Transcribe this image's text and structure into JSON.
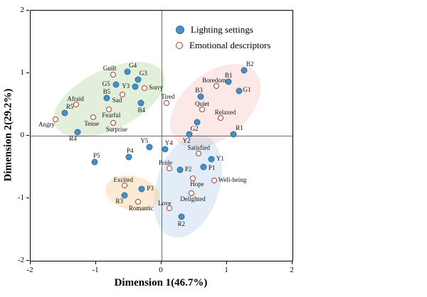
{
  "chart_data": {
    "type": "scatter",
    "title": "",
    "xlabel": "Dimension 1(46.7%)",
    "ylabel": "Dimension 2(29.2%)",
    "xlim": [
      -2,
      2
    ],
    "ylim": [
      -2,
      2
    ],
    "xticks": [
      -2,
      -1,
      0,
      1,
      2
    ],
    "yticks": [
      2,
      1,
      0,
      -1,
      -2
    ],
    "grid": false,
    "legend_position": "upper-center-inside",
    "series": [
      {
        "name": "Lighting settings",
        "marker": "filled-circle",
        "color": "#4a8fc2",
        "points": [
          {
            "label": "G4",
            "x": -0.52,
            "y": 1.02,
            "dx": 2,
            "dy": -13
          },
          {
            "label": "G3",
            "x": -0.36,
            "y": 0.9,
            "dx": 2,
            "dy": -13
          },
          {
            "label": "G5",
            "x": -0.7,
            "y": 0.82,
            "dx": -19,
            "dy": -5
          },
          {
            "label": "Y3",
            "x": -0.4,
            "y": 0.78,
            "dx": -19,
            "dy": -5
          },
          {
            "label": "B5",
            "x": -0.84,
            "y": 0.6,
            "dx": -5,
            "dy": -13
          },
          {
            "label": "B4",
            "x": -0.32,
            "y": 0.52,
            "dx": -4,
            "dy": 6
          },
          {
            "label": "R5",
            "x": -1.48,
            "y": 0.36,
            "dx": 2,
            "dy": -13
          },
          {
            "label": "R4",
            "x": -1.28,
            "y": 0.06,
            "dx": -12,
            "dy": 5
          },
          {
            "label": "B2",
            "x": 1.26,
            "y": 1.04,
            "dx": 3,
            "dy": -13
          },
          {
            "label": "B1",
            "x": 1.02,
            "y": 0.86,
            "dx": -5,
            "dy": -13
          },
          {
            "label": "G1",
            "x": 1.18,
            "y": 0.72,
            "dx": 6,
            "dy": -6
          },
          {
            "label": "B3",
            "x": 0.6,
            "y": 0.62,
            "dx": -8,
            "dy": -13
          },
          {
            "label": "G2",
            "x": 0.54,
            "y": 0.22,
            "dx": -9,
            "dy": 5
          },
          {
            "label": "Y2",
            "x": 0.42,
            "y": 0.02,
            "dx": -9,
            "dy": 5
          },
          {
            "label": "R1",
            "x": 1.1,
            "y": 0.02,
            "dx": 3,
            "dy": -13
          },
          {
            "label": "Y5",
            "x": -0.18,
            "y": -0.18,
            "dx": -13,
            "dy": -13
          },
          {
            "label": "Y4",
            "x": 0.05,
            "y": -0.22,
            "dx": 0,
            "dy": -13
          },
          {
            "label": "P4",
            "x": -0.5,
            "y": -0.34,
            "dx": -3,
            "dy": -13
          },
          {
            "label": "P5",
            "x": -1.02,
            "y": -0.42,
            "dx": -2,
            "dy": -13
          },
          {
            "label": "Y1",
            "x": 0.76,
            "y": -0.38,
            "dx": 7,
            "dy": -5
          },
          {
            "label": "P1",
            "x": 0.64,
            "y": -0.5,
            "dx": 7,
            "dy": -3
          },
          {
            "label": "P2",
            "x": 0.28,
            "y": -0.55,
            "dx": 7,
            "dy": -5
          },
          {
            "label": "P3",
            "x": -0.3,
            "y": -0.85,
            "dx": 7,
            "dy": -5
          },
          {
            "label": "R3",
            "x": -0.56,
            "y": -0.96,
            "dx": -13,
            "dy": 4
          },
          {
            "label": "R2",
            "x": 0.3,
            "y": -1.3,
            "dx": -5,
            "dy": 6
          }
        ]
      },
      {
        "name": "Emotional descriptors",
        "marker": "open-circle",
        "color": "#a8432c",
        "points": [
          {
            "label": "Guilt",
            "x": -0.74,
            "y": 0.98,
            "dx": -14,
            "dy": -13
          },
          {
            "label": "Sorry",
            "x": -0.26,
            "y": 0.76,
            "dx": 6,
            "dy": -5
          },
          {
            "label": "Sad",
            "x": -0.6,
            "y": 0.66,
            "dx": -14,
            "dy": 4
          },
          {
            "label": "Afraid",
            "x": -1.3,
            "y": 0.5,
            "dx": -13,
            "dy": -12
          },
          {
            "label": "Fearful",
            "x": -0.8,
            "y": 0.42,
            "dx": -10,
            "dy": 4
          },
          {
            "label": "Tense",
            "x": -1.04,
            "y": 0.3,
            "dx": -13,
            "dy": 5
          },
          {
            "label": "Angry",
            "x": -1.62,
            "y": 0.26,
            "dx": -24,
            "dy": 3
          },
          {
            "label": "Surprise",
            "x": -0.74,
            "y": 0.2,
            "dx": -10,
            "dy": 5
          },
          {
            "label": "Tired",
            "x": 0.08,
            "y": 0.52,
            "dx": -8,
            "dy": -13
          },
          {
            "label": "Boredom",
            "x": 0.84,
            "y": 0.8,
            "dx": -20,
            "dy": -12
          },
          {
            "label": "Quiet",
            "x": 0.62,
            "y": 0.42,
            "dx": -10,
            "dy": -12
          },
          {
            "label": "Relaxed",
            "x": 0.9,
            "y": 0.28,
            "dx": -8,
            "dy": -12
          },
          {
            "label": "Satisfied",
            "x": 0.56,
            "y": -0.28,
            "dx": -15,
            "dy": -12
          },
          {
            "label": "Pride",
            "x": 0.12,
            "y": -0.52,
            "dx": -15,
            "dy": -12
          },
          {
            "label": "Hope",
            "x": 0.48,
            "y": -0.68,
            "dx": -4,
            "dy": 4
          },
          {
            "label": "Well-being",
            "x": 0.8,
            "y": -0.72,
            "dx": 6,
            "dy": -5
          },
          {
            "label": "Excited",
            "x": -0.56,
            "y": -0.8,
            "dx": -16,
            "dy": -12
          },
          {
            "label": "Delighted",
            "x": 0.46,
            "y": -0.92,
            "dx": -16,
            "dy": 4
          },
          {
            "label": "Romantic",
            "x": -0.36,
            "y": -1.06,
            "dx": -13,
            "dy": 5
          },
          {
            "label": "Love",
            "x": 0.12,
            "y": -1.16,
            "dx": -16,
            "dy": -11
          }
        ]
      }
    ],
    "ellipses": [
      {
        "name": "negative-emotion-cluster",
        "cx": -0.8,
        "cy": 0.58,
        "rx": 0.92,
        "ry": 0.48,
        "rotation": -26,
        "color": "rgba(164,204,140,0.32)"
      },
      {
        "name": "calm-boredom-cluster",
        "cx": 0.82,
        "cy": 0.48,
        "rx": 0.8,
        "ry": 0.52,
        "rotation": -40,
        "color": "rgba(246,180,176,0.30)"
      },
      {
        "name": "positive-emotion-cluster",
        "cx": 0.4,
        "cy": -0.8,
        "rx": 0.48,
        "ry": 0.85,
        "rotation": 18,
        "color": "rgba(158,197,228,0.30)"
      },
      {
        "name": "excited-romantic-cluster",
        "cx": -0.44,
        "cy": -0.92,
        "rx": 0.42,
        "ry": 0.27,
        "rotation": 12,
        "color": "rgba(248,206,152,0.42)"
      }
    ]
  },
  "legend": {
    "items": [
      {
        "label": "Lighting settings"
      },
      {
        "label": "Emotional descriptors"
      }
    ]
  }
}
